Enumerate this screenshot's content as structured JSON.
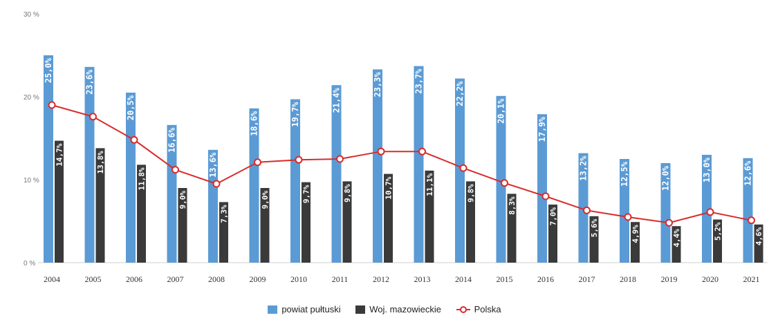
{
  "chart_data": {
    "type": "bar",
    "categories": [
      "2004",
      "2005",
      "2006",
      "2007",
      "2008",
      "2009",
      "2010",
      "2011",
      "2012",
      "2013",
      "2014",
      "2015",
      "2016",
      "2017",
      "2018",
      "2019",
      "2020",
      "2021"
    ],
    "ylim": [
      0,
      30
    ],
    "yticks": [
      {
        "value": 0,
        "label": "0 %"
      },
      {
        "value": 10,
        "label": "10 %"
      },
      {
        "value": 20,
        "label": "20 %"
      },
      {
        "value": 30,
        "label": "30 %"
      }
    ],
    "grid": false,
    "legend_position": "bottom-center",
    "series": [
      {
        "name": "powiat pułtuski",
        "kind": "bar",
        "color": "#5b9bd5",
        "values": [
          25.0,
          23.6,
          20.5,
          16.6,
          13.6,
          18.6,
          19.7,
          21.4,
          23.3,
          23.7,
          22.2,
          20.1,
          17.9,
          13.2,
          12.5,
          12.0,
          13.0,
          12.6
        ],
        "labels": [
          "25,0%",
          "23,6%",
          "20,5%",
          "16,6%",
          "13,6%",
          "18,6%",
          "19,7%",
          "21,4%",
          "23,3%",
          "23,7%",
          "22,2%",
          "20,1%",
          "17,9%",
          "13,2%",
          "12,5%",
          "12,0%",
          "13,0%",
          "12,6%"
        ]
      },
      {
        "name": "Woj. mazowieckie",
        "kind": "bar",
        "color": "#3a3a3a",
        "values": [
          14.7,
          13.8,
          11.8,
          9.0,
          7.3,
          9.0,
          9.7,
          9.8,
          10.7,
          11.1,
          9.8,
          8.3,
          7.0,
          5.6,
          4.9,
          4.4,
          5.2,
          4.6
        ],
        "labels": [
          "14,7%",
          "13,8%",
          "11,8%",
          "9,0%",
          "7,3%",
          "9,0%",
          "9,7%",
          "9,8%",
          "10,7%",
          "11,1%",
          "9,8%",
          "8,3%",
          "7,0%",
          "5,6%",
          "4,9%",
          "4,4%",
          "5,2%",
          "4,6%"
        ]
      },
      {
        "name": "Polska",
        "kind": "line",
        "color": "#d92b2b",
        "values": [
          19.0,
          17.6,
          14.8,
          11.2,
          9.5,
          12.1,
          12.4,
          12.5,
          13.4,
          13.4,
          11.4,
          9.6,
          8.0,
          6.3,
          5.5,
          4.8,
          6.1,
          5.1
        ]
      }
    ]
  },
  "legend": {
    "items": [
      {
        "label": "powiat pułtuski",
        "color": "#5b9bd5"
      },
      {
        "label": "Woj. mazowieckie",
        "color": "#3a3a3a"
      },
      {
        "label": "Polska",
        "color": "#d92b2b"
      }
    ]
  }
}
